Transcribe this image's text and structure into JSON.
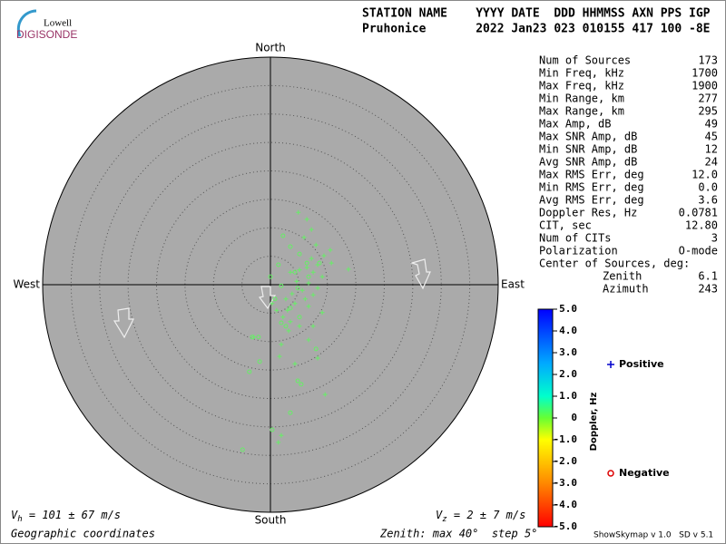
{
  "logo": {
    "top": "Lowell",
    "bottom": "DIGISONDE"
  },
  "header": {
    "columns": "STATION NAME    YYYY DATE  DDD HHMMSS AXN PPS IGP",
    "values": "Pruhonice       2022 Jan23 023 010155 417 100 -8E"
  },
  "stats": {
    "rows": [
      [
        "Num of Sources",
        "173"
      ],
      [
        "Min Freq, kHz",
        "1700"
      ],
      [
        "Max Freq, kHz",
        "1900"
      ],
      [
        "Min Range, km",
        "277"
      ],
      [
        "Max Range, km",
        "295"
      ],
      [
        "Max Amp, dB",
        "49"
      ],
      [
        "Max SNR Amp, dB",
        "45"
      ],
      [
        "Min SNR Amp, dB",
        "12"
      ],
      [
        "Avg SNR Amp, dB",
        "24"
      ],
      [
        "Max RMS Err, deg",
        "12.0"
      ],
      [
        "Min RMS Err, deg",
        "0.0"
      ],
      [
        "Avg RMS Err, deg",
        "3.6"
      ],
      [
        "Doppler Res, Hz",
        "0.0781"
      ],
      [
        "CIT, sec",
        "12.80"
      ],
      [
        "Num of CITs",
        "3"
      ],
      [
        "Polarization",
        "O-mode"
      ]
    ],
    "center_title": "Center of Sources, deg:",
    "center_rows": [
      [
        "Zenith",
        "6.1"
      ],
      [
        "Azimuth",
        "243"
      ]
    ]
  },
  "chart_data": {
    "type": "skymap",
    "direction_labels": {
      "north": "North",
      "south": "South",
      "east": "East",
      "west": "West"
    },
    "xlim": [
      -40,
      40
    ],
    "ylim": [
      -40,
      40
    ],
    "rticks": [
      5,
      10,
      15,
      20,
      25,
      30,
      35
    ],
    "series": [
      {
        "name": "Positive",
        "marker": "plus",
        "color": "#66ee66",
        "legend_color": "#0000cc",
        "x": [
          4.9,
          6.4,
          7.2,
          5.9,
          8.0,
          10.5,
          9.4,
          7.2,
          8.3,
          6.4,
          5.1,
          7.5,
          9.1,
          3.5,
          4.6,
          6.7,
          8.3,
          5.6,
          3.8,
          7.5,
          2.7,
          4.3,
          1.1,
          2.2,
          3.5,
          5.1,
          3.2,
          7.5,
          6.7,
          1.9,
          1.6,
          8.3,
          4.3,
          9.6,
          1.9,
          1.4,
          13.7,
          10.7,
          -2.9,
          6.7,
          9.1,
          0.3,
          6.1,
          3.0
        ],
        "values": [
          12.7,
          11.5,
          9.7,
          8.3,
          7.0,
          6.1,
          5.1,
          4.6,
          3.5,
          3.0,
          2.6,
          2.2,
          1.4,
          2.2,
          0.6,
          0.3,
          -0.6,
          -1.0,
          -1.6,
          -1.8,
          -2.5,
          -3.3,
          -4.5,
          -5.7,
          -6.5,
          -7.3,
          -8.1,
          -7.3,
          -9.7,
          -10.5,
          -12.6,
          -12.9,
          -13.9,
          -19.3,
          -26.5,
          -27.7,
          2.7,
          3.8,
          -9.2,
          -3.8,
          -4.9,
          -3.3,
          -2.5,
          -4.5
        ]
      },
      {
        "name": "Negative",
        "marker": "circle",
        "color": "#66ee66",
        "legend_color": "#dd0000",
        "x": [
          2.2,
          3.5,
          5.1,
          6.4,
          4.3,
          6.7,
          1.9,
          4.8,
          0.8,
          3.5,
          1.9,
          5.1,
          -2.1,
          -3.2,
          8.0,
          -1.9,
          -3.7,
          4.8,
          5.4,
          3.5,
          0.3,
          -4.9,
          1.4,
          8.6,
          0.0,
          2.7
        ],
        "values": [
          8.6,
          6.7,
          5.4,
          3.8,
          2.2,
          1.4,
          -0.2,
          -0.6,
          -2.5,
          -4.1,
          -6.7,
          -5.7,
          -9.2,
          -9.2,
          -11.3,
          -13.5,
          -15.3,
          -16.9,
          -17.5,
          -22.5,
          -25.5,
          -29.0,
          3.5,
          3.8,
          1.4,
          -7.3
        ]
      }
    ],
    "colorbar": {
      "label": "Doppler, Hz",
      "lim": [
        -5,
        5
      ],
      "ticks": [
        {
          "value": 5,
          "label": "5.0"
        },
        {
          "value": 4,
          "label": "4.0"
        },
        {
          "value": 3,
          "label": "3.0"
        },
        {
          "value": 2,
          "label": "2.0"
        },
        {
          "value": 1,
          "label": "1.0"
        },
        0,
        {
          "value": -1,
          "label": "-1.0"
        },
        {
          "value": -2,
          "label": "-2.0"
        },
        {
          "value": -3,
          "label": "-3.0"
        },
        {
          "value": -4,
          "label": "-4.0"
        },
        {
          "value": -5,
          "label": "-5.0"
        }
      ]
    }
  },
  "footer": {
    "vh": {
      "symbol": "V",
      "sub": "h",
      "text": " = 101 ± 67 m/s"
    },
    "vz": {
      "symbol": "V",
      "sub": "z",
      "text": " = 2 ± 7 m/s"
    },
    "coords": "Geographic coordinates",
    "zenith": "Zenith: max 40°  step 5°",
    "version": "ShowSkymap v 1.0   SD v 5.1"
  }
}
